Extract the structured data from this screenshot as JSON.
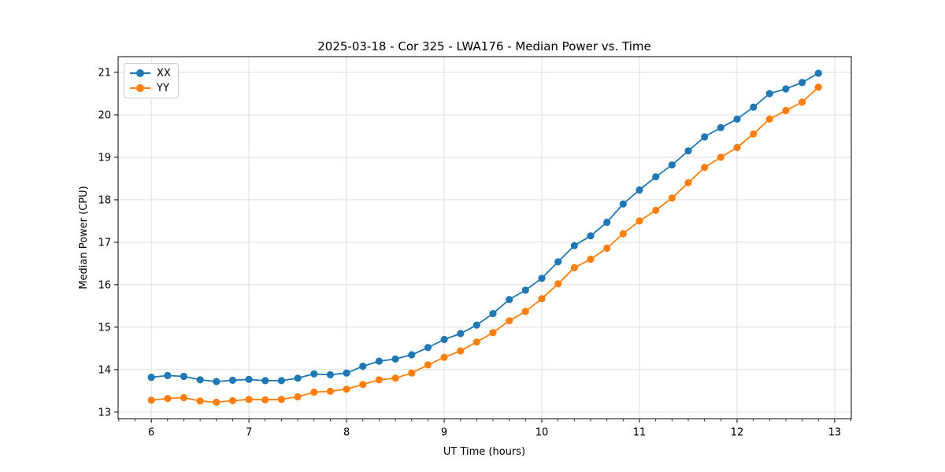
{
  "figure": {
    "title": "2025-03-18 - Cor 325 - LWA176 - Median Power vs. Time",
    "background_color": "#ffffff"
  },
  "chart_data": {
    "type": "line",
    "title": "2025-03-18 - Cor 325 - LWA176 - Median Power vs. Time",
    "xlabel": "UT Time (hours)",
    "ylabel": "Median Power (CPU)",
    "x": [
      6.0,
      6.167,
      6.333,
      6.5,
      6.667,
      6.833,
      7.0,
      7.167,
      7.333,
      7.5,
      7.667,
      7.833,
      8.0,
      8.167,
      8.333,
      8.5,
      8.667,
      8.833,
      9.0,
      9.167,
      9.333,
      9.5,
      9.667,
      9.833,
      10.0,
      10.167,
      10.333,
      10.5,
      10.667,
      10.833,
      11.0,
      11.167,
      11.333,
      11.5,
      11.667,
      11.833,
      12.0,
      12.167,
      12.333,
      12.5,
      12.667,
      12.833
    ],
    "series": [
      {
        "name": "XX",
        "color": "#1f77b4",
        "marker": "circle",
        "values": [
          13.82,
          13.86,
          13.84,
          13.76,
          13.72,
          13.75,
          13.77,
          13.74,
          13.74,
          13.8,
          13.9,
          13.88,
          13.92,
          14.08,
          14.2,
          14.25,
          14.35,
          14.52,
          14.71,
          14.85,
          15.05,
          15.32,
          15.65,
          15.87,
          16.15,
          16.54,
          16.92,
          17.15,
          17.47,
          17.9,
          18.23,
          18.54,
          18.82,
          19.15,
          19.48,
          19.7,
          19.9,
          20.18,
          20.5,
          20.61,
          20.76,
          20.98
        ]
      },
      {
        "name": "YY",
        "color": "#ff7f0e",
        "marker": "circle",
        "values": [
          13.28,
          13.32,
          13.34,
          13.26,
          13.23,
          13.27,
          13.3,
          13.29,
          13.3,
          13.36,
          13.47,
          13.49,
          13.54,
          13.65,
          13.76,
          13.8,
          13.92,
          14.11,
          14.29,
          14.44,
          14.65,
          14.87,
          15.15,
          15.37,
          15.67,
          16.02,
          16.4,
          16.6,
          16.86,
          17.2,
          17.5,
          17.75,
          18.04,
          18.4,
          18.76,
          19.0,
          19.23,
          19.55,
          19.9,
          20.1,
          20.3,
          20.65
        ]
      }
    ],
    "xlim": [
      5.66,
      13.17
    ],
    "ylim": [
      12.84,
      21.37
    ],
    "xticks": [
      6,
      7,
      8,
      9,
      10,
      11,
      12,
      13
    ],
    "xtick_labels": [
      "6",
      "7",
      "8",
      "9",
      "10",
      "11",
      "12",
      "13"
    ],
    "yticks": [
      13,
      14,
      15,
      16,
      17,
      18,
      19,
      20,
      21
    ],
    "ytick_labels": [
      "13",
      "14",
      "15",
      "16",
      "17",
      "18",
      "19",
      "20",
      "21"
    ],
    "x_minor_tick_interval": 0.1667,
    "grid": true,
    "legend": {
      "position": "upper-left",
      "entries": [
        "XX",
        "YY"
      ]
    }
  },
  "styles": {
    "grid_color": "#dedede",
    "spine_color": "#000000",
    "tick_color": "#000000",
    "text_color": "#000000"
  }
}
